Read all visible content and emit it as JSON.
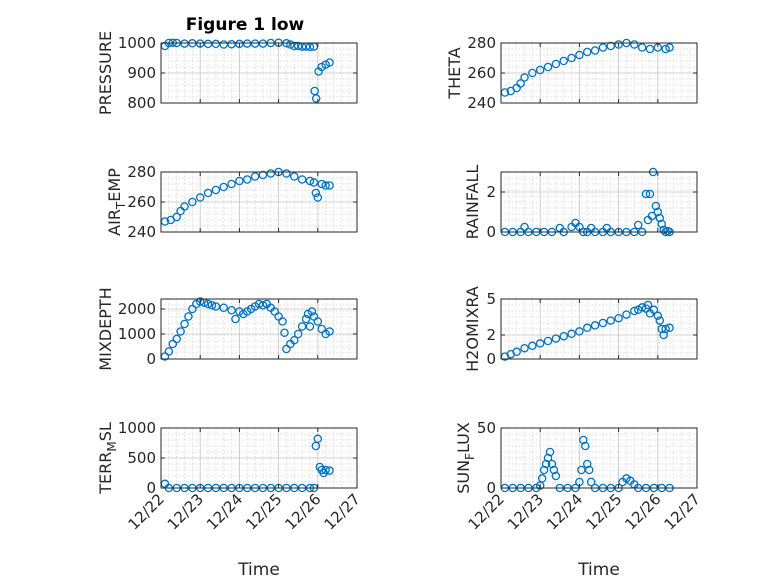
{
  "figure_title": "Figure 1 low",
  "marker_color": "#0072BD",
  "chart_data": [
    {
      "type": "scatter",
      "ylabel": "PRESSURE",
      "xlabel": "",
      "xlim": [
        0,
        5
      ],
      "ylim": [
        800,
        1000
      ],
      "yticks": [
        800,
        900,
        1000
      ],
      "yticklabels": [
        "800",
        "900",
        "1000"
      ],
      "x_ticklabels_shown": false,
      "grid": "major+minor",
      "points": [
        [
          0.1,
          990
        ],
        [
          0.2,
          1000
        ],
        [
          0.3,
          1001
        ],
        [
          0.4,
          1000
        ],
        [
          0.6,
          998
        ],
        [
          0.8,
          999
        ],
        [
          1.0,
          998
        ],
        [
          1.2,
          997
        ],
        [
          1.4,
          997
        ],
        [
          1.6,
          995
        ],
        [
          1.8,
          996
        ],
        [
          2.0,
          997
        ],
        [
          2.2,
          998
        ],
        [
          2.4,
          998
        ],
        [
          2.6,
          998
        ],
        [
          2.8,
          1000
        ],
        [
          3.0,
          1001
        ],
        [
          3.2,
          999
        ],
        [
          3.3,
          995
        ],
        [
          3.4,
          990
        ],
        [
          3.5,
          990
        ],
        [
          3.6,
          988
        ],
        [
          3.7,
          988
        ],
        [
          3.8,
          987
        ],
        [
          3.9,
          988
        ],
        [
          3.92,
          840
        ],
        [
          3.96,
          815
        ],
        [
          4.02,
          905
        ],
        [
          4.1,
          920
        ],
        [
          4.2,
          928
        ],
        [
          4.3,
          935
        ]
      ]
    },
    {
      "type": "scatter",
      "ylabel": "THETA",
      "xlabel": "",
      "xlim": [
        0,
        5
      ],
      "ylim": [
        240,
        280
      ],
      "yticks": [
        240,
        260,
        280
      ],
      "yticklabels": [
        "240",
        "260",
        "280"
      ],
      "x_ticklabels_shown": false,
      "grid": "major+minor",
      "points": [
        [
          0.1,
          247
        ],
        [
          0.25,
          248
        ],
        [
          0.4,
          250
        ],
        [
          0.5,
          253
        ],
        [
          0.6,
          257
        ],
        [
          0.8,
          260
        ],
        [
          1.0,
          262
        ],
        [
          1.2,
          264
        ],
        [
          1.4,
          266
        ],
        [
          1.6,
          268
        ],
        [
          1.8,
          270
        ],
        [
          2.0,
          272
        ],
        [
          2.2,
          274
        ],
        [
          2.4,
          275
        ],
        [
          2.6,
          277
        ],
        [
          2.8,
          278
        ],
        [
          3.0,
          279
        ],
        [
          3.2,
          280
        ],
        [
          3.4,
          279
        ],
        [
          3.6,
          277
        ],
        [
          3.8,
          276
        ],
        [
          4.0,
          277
        ],
        [
          4.2,
          276
        ],
        [
          4.3,
          277
        ]
      ]
    },
    {
      "type": "scatter",
      "ylabel": "AIR_TEMP",
      "ylabel_display": [
        "AIR",
        "T",
        "EMP"
      ],
      "xlabel": "",
      "xlim": [
        0,
        5
      ],
      "ylim": [
        240,
        280
      ],
      "yticks": [
        240,
        260,
        280
      ],
      "yticklabels": [
        "240",
        "260",
        "280"
      ],
      "x_ticklabels_shown": false,
      "grid": "major+minor",
      "points": [
        [
          0.1,
          247
        ],
        [
          0.25,
          248
        ],
        [
          0.4,
          250
        ],
        [
          0.5,
          254
        ],
        [
          0.6,
          257
        ],
        [
          0.8,
          260
        ],
        [
          1.0,
          263
        ],
        [
          1.2,
          266
        ],
        [
          1.4,
          268
        ],
        [
          1.6,
          270
        ],
        [
          1.8,
          272
        ],
        [
          2.0,
          274
        ],
        [
          2.2,
          275
        ],
        [
          2.4,
          277
        ],
        [
          2.6,
          278
        ],
        [
          2.8,
          279
        ],
        [
          3.0,
          280
        ],
        [
          3.2,
          279
        ],
        [
          3.4,
          277
        ],
        [
          3.6,
          275
        ],
        [
          3.8,
          274
        ],
        [
          3.9,
          273
        ],
        [
          3.95,
          266
        ],
        [
          4.0,
          263
        ],
        [
          4.1,
          272
        ],
        [
          4.2,
          271
        ],
        [
          4.3,
          271
        ]
      ]
    },
    {
      "type": "scatter",
      "ylabel": "RAINFALL",
      "xlabel": "",
      "xlim": [
        0,
        5
      ],
      "ylim": [
        0,
        3
      ],
      "yticks": [
        0,
        2
      ],
      "yticklabels": [
        "0",
        "2"
      ],
      "x_ticklabels_shown": false,
      "grid": "major+minor",
      "points": [
        [
          0.1,
          0
        ],
        [
          0.3,
          0
        ],
        [
          0.5,
          0
        ],
        [
          0.6,
          0.25
        ],
        [
          0.7,
          0
        ],
        [
          0.9,
          0
        ],
        [
          1.1,
          0
        ],
        [
          1.3,
          0
        ],
        [
          1.5,
          0.2
        ],
        [
          1.6,
          0
        ],
        [
          1.8,
          0.25
        ],
        [
          1.9,
          0.45
        ],
        [
          2.0,
          0.25
        ],
        [
          2.1,
          0
        ],
        [
          2.2,
          0
        ],
        [
          2.3,
          0.2
        ],
        [
          2.4,
          0
        ],
        [
          2.6,
          0
        ],
        [
          2.7,
          0.2
        ],
        [
          2.8,
          0
        ],
        [
          3.0,
          0
        ],
        [
          3.2,
          0
        ],
        [
          3.4,
          0
        ],
        [
          3.5,
          0.35
        ],
        [
          3.6,
          0
        ],
        [
          3.7,
          1.9
        ],
        [
          3.75,
          0.6
        ],
        [
          3.8,
          1.9
        ],
        [
          3.85,
          0.8
        ],
        [
          3.88,
          3.0
        ],
        [
          3.95,
          1.3
        ],
        [
          4.0,
          1.0
        ],
        [
          4.05,
          0.7
        ],
        [
          4.1,
          0.4
        ],
        [
          4.15,
          0.1
        ],
        [
          4.2,
          0
        ],
        [
          4.25,
          0.05
        ],
        [
          4.3,
          0
        ]
      ]
    },
    {
      "type": "scatter",
      "ylabel": "MIXDEPTH",
      "xlabel": "",
      "xlim": [
        0,
        5
      ],
      "ylim": [
        0,
        2400
      ],
      "yticks": [
        0,
        1000,
        2000
      ],
      "yticklabels": [
        "0",
        "1000",
        "2000"
      ],
      "x_ticklabels_shown": false,
      "grid": "major+minor",
      "points": [
        [
          0.1,
          100
        ],
        [
          0.2,
          300
        ],
        [
          0.3,
          600
        ],
        [
          0.4,
          800
        ],
        [
          0.5,
          1100
        ],
        [
          0.6,
          1400
        ],
        [
          0.7,
          1700
        ],
        [
          0.8,
          2000
        ],
        [
          0.9,
          2200
        ],
        [
          1.0,
          2300
        ],
        [
          1.1,
          2250
        ],
        [
          1.2,
          2200
        ],
        [
          1.3,
          2150
        ],
        [
          1.4,
          2100
        ],
        [
          1.6,
          2050
        ],
        [
          1.8,
          1950
        ],
        [
          1.9,
          1600
        ],
        [
          2.0,
          1900
        ],
        [
          2.1,
          1800
        ],
        [
          2.2,
          1900
        ],
        [
          2.3,
          2000
        ],
        [
          2.4,
          2100
        ],
        [
          2.5,
          2200
        ],
        [
          2.6,
          2150
        ],
        [
          2.7,
          2200
        ],
        [
          2.8,
          2050
        ],
        [
          2.9,
          1900
        ],
        [
          3.0,
          1700
        ],
        [
          3.1,
          1500
        ],
        [
          3.15,
          1050
        ],
        [
          3.2,
          400
        ],
        [
          3.3,
          600
        ],
        [
          3.4,
          750
        ],
        [
          3.5,
          1000
        ],
        [
          3.6,
          1300
        ],
        [
          3.7,
          1600
        ],
        [
          3.75,
          1800
        ],
        [
          3.8,
          1300
        ],
        [
          3.85,
          1900
        ],
        [
          3.9,
          1700
        ],
        [
          4.0,
          1500
        ],
        [
          4.1,
          1200
        ],
        [
          4.2,
          1000
        ],
        [
          4.3,
          1100
        ]
      ]
    },
    {
      "type": "scatter",
      "ylabel": "H2OMIXRA",
      "xlabel": "",
      "xlim": [
        0,
        5
      ],
      "ylim": [
        0,
        5
      ],
      "yticks": [
        0,
        2,
        5
      ],
      "yticklabels": [
        "0",
        "2",
        "5"
      ],
      "x_ticklabels_shown": false,
      "grid": "major+minor",
      "points": [
        [
          0.1,
          0.2
        ],
        [
          0.25,
          0.4
        ],
        [
          0.4,
          0.6
        ],
        [
          0.6,
          0.9
        ],
        [
          0.8,
          1.1
        ],
        [
          1.0,
          1.3
        ],
        [
          1.2,
          1.5
        ],
        [
          1.4,
          1.7
        ],
        [
          1.6,
          1.9
        ],
        [
          1.8,
          2.1
        ],
        [
          2.0,
          2.3
        ],
        [
          2.2,
          2.6
        ],
        [
          2.4,
          2.8
        ],
        [
          2.6,
          3.0
        ],
        [
          2.8,
          3.2
        ],
        [
          3.0,
          3.4
        ],
        [
          3.2,
          3.7
        ],
        [
          3.4,
          4.0
        ],
        [
          3.5,
          4.1
        ],
        [
          3.6,
          4.3
        ],
        [
          3.7,
          4.2
        ],
        [
          3.75,
          4.5
        ],
        [
          3.8,
          3.8
        ],
        [
          3.9,
          4.1
        ],
        [
          4.0,
          3.6
        ],
        [
          4.05,
          3.2
        ],
        [
          4.1,
          2.5
        ],
        [
          4.15,
          2.0
        ],
        [
          4.2,
          2.5
        ],
        [
          4.3,
          2.6
        ]
      ]
    },
    {
      "type": "scatter",
      "ylabel": "TERR_MSL",
      "ylabel_display": [
        "TERR",
        "M",
        "SL"
      ],
      "xlabel": "Time",
      "xlim": [
        0,
        5
      ],
      "ylim": [
        0,
        1000
      ],
      "yticks": [
        0,
        500,
        1000
      ],
      "yticklabels": [
        "0",
        "500",
        "1000"
      ],
      "x_ticklabels_shown": true,
      "xticks": [
        0,
        1,
        2,
        3,
        4,
        5
      ],
      "xticklabels": [
        "12/22",
        "12/23",
        "12/24",
        "12/25",
        "12/26",
        "12/27"
      ],
      "grid": "major+minor",
      "points": [
        [
          0.1,
          70
        ],
        [
          0.2,
          0
        ],
        [
          0.4,
          0
        ],
        [
          0.6,
          0
        ],
        [
          0.8,
          0
        ],
        [
          1.0,
          0
        ],
        [
          1.2,
          0
        ],
        [
          1.4,
          0
        ],
        [
          1.6,
          0
        ],
        [
          1.8,
          0
        ],
        [
          2.0,
          0
        ],
        [
          2.2,
          0
        ],
        [
          2.4,
          0
        ],
        [
          2.6,
          0
        ],
        [
          2.8,
          0
        ],
        [
          3.0,
          0
        ],
        [
          3.2,
          0
        ],
        [
          3.4,
          0
        ],
        [
          3.6,
          0
        ],
        [
          3.8,
          0
        ],
        [
          3.9,
          0
        ],
        [
          3.95,
          700
        ],
        [
          4.0,
          820
        ],
        [
          4.05,
          350
        ],
        [
          4.1,
          300
        ],
        [
          4.15,
          250
        ],
        [
          4.2,
          300
        ],
        [
          4.3,
          290
        ]
      ]
    },
    {
      "type": "scatter",
      "ylabel": "SUN_FLUX",
      "ylabel_display": [
        "SUN",
        "F",
        "LUX"
      ],
      "xlabel": "Time",
      "xlim": [
        0,
        5
      ],
      "ylim": [
        0,
        50
      ],
      "yticks": [
        0,
        50
      ],
      "yticklabels": [
        "0",
        "50"
      ],
      "x_ticklabels_shown": true,
      "xticks": [
        0,
        1,
        2,
        3,
        4,
        5
      ],
      "xticklabels": [
        "12/22",
        "12/23",
        "12/24",
        "12/25",
        "12/26",
        "12/27"
      ],
      "grid": "major+minor",
      "points": [
        [
          0.1,
          0
        ],
        [
          0.3,
          0
        ],
        [
          0.5,
          0
        ],
        [
          0.7,
          0
        ],
        [
          0.9,
          0
        ],
        [
          1.0,
          2
        ],
        [
          1.05,
          8
        ],
        [
          1.1,
          15
        ],
        [
          1.15,
          20
        ],
        [
          1.2,
          25
        ],
        [
          1.25,
          30
        ],
        [
          1.3,
          20
        ],
        [
          1.35,
          15
        ],
        [
          1.4,
          10
        ],
        [
          1.5,
          0
        ],
        [
          1.7,
          0
        ],
        [
          1.9,
          0
        ],
        [
          2.0,
          5
        ],
        [
          2.05,
          15
        ],
        [
          2.1,
          40
        ],
        [
          2.15,
          35
        ],
        [
          2.2,
          20
        ],
        [
          2.25,
          15
        ],
        [
          2.3,
          5
        ],
        [
          2.4,
          0
        ],
        [
          2.6,
          0
        ],
        [
          2.8,
          0
        ],
        [
          3.0,
          0
        ],
        [
          3.1,
          5
        ],
        [
          3.2,
          8
        ],
        [
          3.3,
          6
        ],
        [
          3.4,
          3
        ],
        [
          3.5,
          0
        ],
        [
          3.7,
          0
        ],
        [
          3.9,
          0
        ],
        [
          4.1,
          0
        ],
        [
          4.3,
          0
        ]
      ]
    }
  ]
}
